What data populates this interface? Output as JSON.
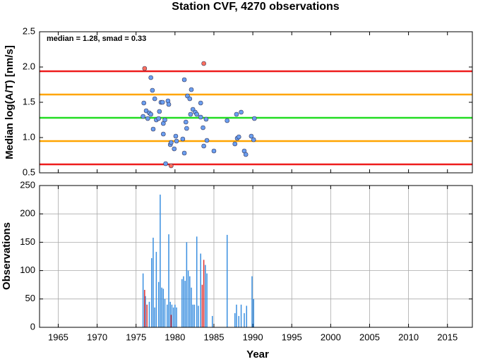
{
  "chart_data": [
    {
      "type": "scatter",
      "title": "Station CVF, 4270 observations",
      "annotation": "median = 1.28, smad = 0.33",
      "y_label": "Median log(A/T) [nm/s]",
      "xlim": [
        1962.6,
        2018.2
      ],
      "ylim": [
        0.5,
        2.5
      ],
      "yticks": [
        0.5,
        {
          "value": 1.0,
          "label": "1.0"
        },
        1.5,
        {
          "value": 2.0,
          "label": "2.0"
        },
        2.5
      ],
      "grid": false,
      "hlines": [
        {
          "value": 1.94,
          "color": "#ee1c1c"
        },
        {
          "value": 1.61,
          "color": "#ffa500"
        },
        {
          "value": 1.28,
          "color": "#22dd22"
        },
        {
          "value": 0.95,
          "color": "#ffa500"
        },
        {
          "value": 0.62,
          "color": "#ee1c1c"
        }
      ],
      "series": [
        {
          "color": "#6a9ef0",
          "x": [
            1976.9,
            1977.1,
            1976.0,
            1976.3,
            1976.7,
            1976.9,
            1975.9,
            1976.5,
            1977.4,
            1977.6,
            1977.9,
            1978.2,
            1978.4,
            1978.0,
            1977.2,
            1978.5,
            1978.5,
            1978.7,
            1979.1,
            1979.2,
            1978.8,
            1979.4,
            1979.5,
            1980.1,
            1980.2,
            1979.9,
            1981.2,
            1981.4,
            1981.5,
            1981.6,
            1981.9,
            1982.1,
            1982.0,
            1982.3,
            1982.6,
            1982.8,
            1981.2,
            1981.0,
            1983.3,
            1983.3,
            1983.6,
            1984.0,
            1983.7,
            1984.1,
            1985.0,
            1986.7,
            1987.7,
            1988.0,
            1988.2,
            1987.9,
            1988.5,
            1988.9,
            1989.1,
            1989.8,
            1990.1,
            1990.2
          ],
          "values": [
            1.85,
            1.67,
            1.49,
            1.38,
            1.35,
            1.33,
            1.3,
            1.27,
            1.55,
            1.25,
            1.27,
            1.5,
            1.5,
            1.37,
            1.12,
            1.2,
            1.05,
            1.25,
            1.52,
            1.47,
            0.63,
            0.9,
            0.93,
            1.02,
            0.95,
            0.84,
            1.82,
            1.22,
            1.13,
            1.59,
            1.55,
            1.68,
            1.33,
            1.4,
            1.36,
            1.33,
            0.78,
            0.98,
            1.29,
            1.49,
            1.14,
            1.26,
            0.88,
            0.96,
            0.81,
            1.24,
            0.91,
            0.99,
            1.01,
            1.33,
            1.36,
            0.81,
            0.76,
            1.02,
            0.97,
            1.27
          ]
        },
        {
          "color": "#ff6f5e",
          "x": [
            1976.1,
            1983.7,
            1979.5
          ],
          "values": [
            1.98,
            2.05,
            0.6
          ]
        }
      ]
    },
    {
      "type": "bar",
      "y_label": "Observations",
      "x_label": "Year",
      "xlim": [
        1962.6,
        2018.2
      ],
      "ylim": [
        0,
        250
      ],
      "xticks": [
        1965,
        1970,
        1975,
        1980,
        1985,
        1990,
        1995,
        2000,
        2005,
        2010,
        2015
      ],
      "yticks": [
        0,
        50,
        100,
        150,
        200,
        250
      ],
      "grid": true,
      "series": [
        {
          "color": "#3a8fe0",
          "x": [
            1975.9,
            1976.2,
            1976.7,
            1977.0,
            1977.2,
            1977.4,
            1977.6,
            1977.9,
            1978.1,
            1978.3,
            1978.5,
            1978.7,
            1979.0,
            1979.2,
            1979.4,
            1979.6,
            1979.8,
            1980.0,
            1980.2,
            1980.9,
            1981.1,
            1981.3,
            1981.5,
            1981.7,
            1981.9,
            1982.1,
            1982.3,
            1982.5,
            1982.8,
            1983.0,
            1983.3,
            1983.9,
            1984.1,
            1984.8,
            1986.7,
            1987.7,
            1987.9,
            1988.2,
            1988.5,
            1988.9,
            1989.2,
            1989.9,
            1990.1
          ],
          "values": [
            95,
            55,
            45,
            122,
            158,
            35,
            133,
            80,
            234,
            70,
            68,
            50,
            40,
            164,
            45,
            40,
            35,
            40,
            35,
            85,
            90,
            82,
            150,
            100,
            90,
            70,
            40,
            40,
            160,
            38,
            130,
            110,
            95,
            20,
            163,
            25,
            40,
            20,
            40,
            25,
            38,
            90,
            50
          ]
        },
        {
          "color": "#e03030",
          "x": [
            1976.1,
            1976.4,
            1979.5,
            1983.5,
            1983.7
          ],
          "values": [
            66,
            40,
            22,
            75,
            119
          ]
        }
      ]
    }
  ]
}
